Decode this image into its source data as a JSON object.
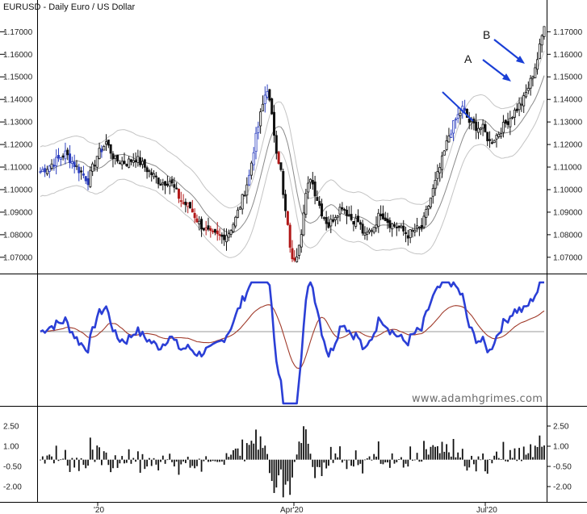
{
  "chart_data": {
    "type": "candlestick",
    "title": "EURUSD - Daily  Euro / US Dollar",
    "watermark": "www.adamhgrimes.com",
    "x_tick_labels": [
      "'20",
      "Apr'20",
      "Jul'20"
    ],
    "annotations": [
      {
        "label": "A",
        "color": "#1a3fd6"
      },
      {
        "label": "B",
        "color": "#1a3fd6"
      }
    ],
    "panels": [
      {
        "name": "price",
        "y_ticks": [
          1.07,
          1.08,
          1.09,
          1.1,
          1.11,
          1.12,
          1.13,
          1.14,
          1.15,
          1.16,
          1.17
        ],
        "y_tick_labels": [
          "1.07000",
          "1.08000",
          "1.09000",
          "1.10000",
          "1.11000",
          "1.12000",
          "1.13000",
          "1.14000",
          "1.15000",
          "1.16000",
          "1.17000"
        ],
        "ylim": [
          1.0635,
          1.1805
        ],
        "close_path": [
          [
            0,
            1.108
          ],
          [
            6,
            1.112
          ],
          [
            11,
            1.116
          ],
          [
            16,
            1.11
          ],
          [
            21,
            1.104
          ],
          [
            25,
            1.115
          ],
          [
            29,
            1.121
          ],
          [
            33,
            1.113
          ],
          [
            38,
            1.112
          ],
          [
            42,
            1.114
          ],
          [
            48,
            1.108
          ],
          [
            53,
            1.103
          ],
          [
            57,
            1.104
          ],
          [
            62,
            1.095
          ],
          [
            66,
            1.092
          ],
          [
            70,
            1.085
          ],
          [
            75,
            1.08
          ],
          [
            80,
            1.079
          ],
          [
            83,
            1.081
          ],
          [
            86,
            1.087
          ],
          [
            89,
            1.096
          ],
          [
            92,
            1.106
          ],
          [
            94,
            1.118
          ],
          [
            97,
            1.133
          ],
          [
            99,
            1.142
          ],
          [
            100,
            1.145
          ],
          [
            102,
            1.132
          ],
          [
            104,
            1.118
          ],
          [
            106,
            1.108
          ],
          [
            107,
            1.097
          ],
          [
            109,
            1.083
          ],
          [
            111,
            1.068
          ],
          [
            113,
            1.072
          ],
          [
            115,
            1.082
          ],
          [
            117,
            1.097
          ],
          [
            119,
            1.106
          ],
          [
            121,
            1.099
          ],
          [
            124,
            1.09
          ],
          [
            127,
            1.084
          ],
          [
            130,
            1.089
          ],
          [
            133,
            1.093
          ],
          [
            137,
            1.087
          ],
          [
            140,
            1.086
          ],
          [
            143,
            1.079
          ],
          [
            147,
            1.084
          ],
          [
            150,
            1.09
          ],
          [
            154,
            1.085
          ],
          [
            158,
            1.083
          ],
          [
            162,
            1.08
          ],
          [
            165,
            1.082
          ],
          [
            168,
            1.083
          ],
          [
            171,
            1.093
          ],
          [
            174,
            1.103
          ],
          [
            177,
            1.113
          ],
          [
            180,
            1.124
          ],
          [
            183,
            1.131
          ],
          [
            186,
            1.136
          ],
          [
            189,
            1.13
          ],
          [
            192,
            1.128
          ],
          [
            195,
            1.127
          ],
          [
            198,
            1.121
          ],
          [
            201,
            1.124
          ],
          [
            204,
            1.128
          ],
          [
            207,
            1.132
          ],
          [
            210,
            1.136
          ],
          [
            213,
            1.14
          ],
          [
            216,
            1.148
          ],
          [
            219,
            1.158
          ],
          [
            221,
            1.168
          ],
          [
            222,
            1.174
          ]
        ],
        "highlight_bars": [
          {
            "segment": "early",
            "start": 0,
            "end": 30,
            "color": "#2c3fbf"
          },
          {
            "segment": "selloff",
            "start": 58,
            "end": 82,
            "color": "#b11818"
          },
          {
            "segment": "spike",
            "start": 92,
            "end": 101,
            "color": "#2c3fbf"
          },
          {
            "segment": "crash",
            "start": 105,
            "end": 112,
            "color": "#b11818"
          },
          {
            "segment": "late",
            "start": 179,
            "end": 187,
            "color": "#2c3fbf"
          }
        ]
      },
      {
        "name": "oscillator",
        "fast_color": "#2b3fd6",
        "slow_color": "#a03a2a",
        "zero_color": "#999999"
      },
      {
        "name": "histogram",
        "y_ticks": [
          2.5,
          1.0,
          -0.5,
          -2.0
        ],
        "y_tick_labels": [
          "2.50",
          "1.00",
          "-0.50",
          "-2.00"
        ],
        "ylim": [
          -2.9,
          3.4
        ]
      }
    ]
  }
}
